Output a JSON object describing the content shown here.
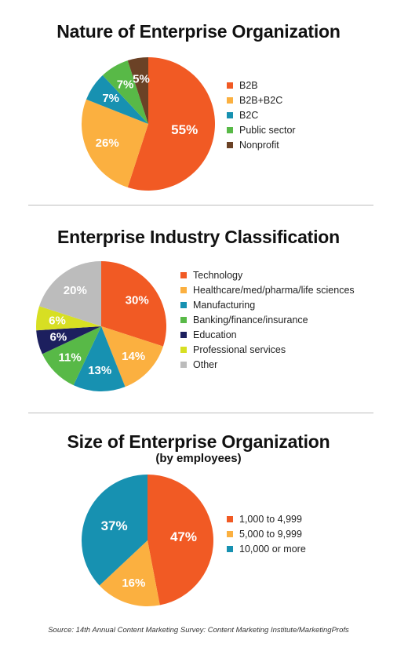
{
  "chart_data": [
    {
      "type": "pie",
      "title": "Nature of Enterprise Organization",
      "subtitle": "",
      "legend_position": "right",
      "categories": [
        "B2B",
        "B2B+B2C",
        "B2C",
        "Public sector",
        "Nonprofit"
      ],
      "values": [
        55,
        26,
        7,
        7,
        5
      ],
      "labels": [
        "55%",
        "26%",
        "7%",
        "7%",
        "5%"
      ],
      "colors": [
        "#f15a24",
        "#fbb040",
        "#1791b1",
        "#58b947",
        "#6b4226"
      ]
    },
    {
      "type": "pie",
      "title": "Enterprise Industry Classification",
      "subtitle": "",
      "legend_position": "right",
      "categories": [
        "Technology",
        "Healthcare/med/pharma/life sciences",
        "Manufacturing",
        "Banking/finance/insurance",
        "Education",
        "Professional services",
        "Other"
      ],
      "values": [
        30,
        14,
        13,
        11,
        6,
        6,
        20
      ],
      "labels": [
        "30%",
        "14%",
        "13%",
        "11%",
        "6%",
        "6%",
        "20%"
      ],
      "colors": [
        "#f15a24",
        "#fbb040",
        "#1791b1",
        "#58b947",
        "#1c1f5e",
        "#d7df23",
        "#bcbcbc"
      ]
    },
    {
      "type": "pie",
      "title": "Size of Enterprise Organization",
      "subtitle": "(by employees)",
      "legend_position": "right",
      "categories": [
        "1,000 to 4,999",
        "5,000 to 9,999",
        "10,000 or more"
      ],
      "values": [
        47,
        16,
        37
      ],
      "labels": [
        "47%",
        "16%",
        "37%"
      ],
      "colors": [
        "#f15a24",
        "#fbb040",
        "#1791b1"
      ]
    }
  ],
  "source": "Source: 14th Annual Content Marketing Survey: Content Marketing Institute/MarketingProfs"
}
